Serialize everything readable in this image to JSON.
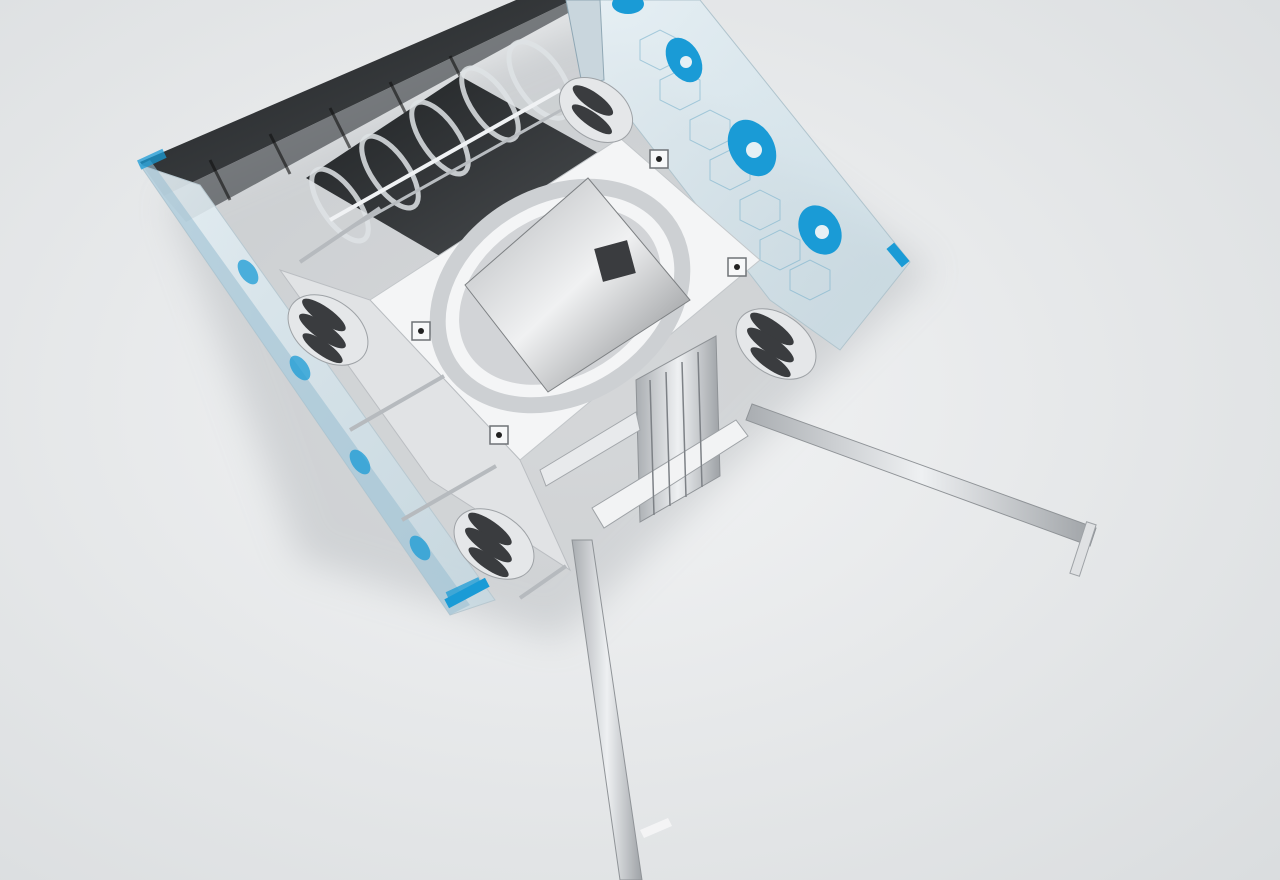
{
  "scene": {
    "subject": "robot-render",
    "colors": {
      "background_light": "#f3f4f5",
      "background_dark": "#d9dcde",
      "accent_blue": "#1a9bd6",
      "aluminum": "#d8dadc",
      "aluminum_dark": "#9ea2a6",
      "dark_panel": "#2e3134",
      "wheel_dark": "#3a3c3f",
      "acrylic": "#cfe3ec",
      "plate_white": "#f4f5f6",
      "sheet_grey": "#8e9194"
    },
    "icons": [
      "mecanum-wheel-icon",
      "turntable-icon",
      "extrusion-profile-icon"
    ]
  }
}
